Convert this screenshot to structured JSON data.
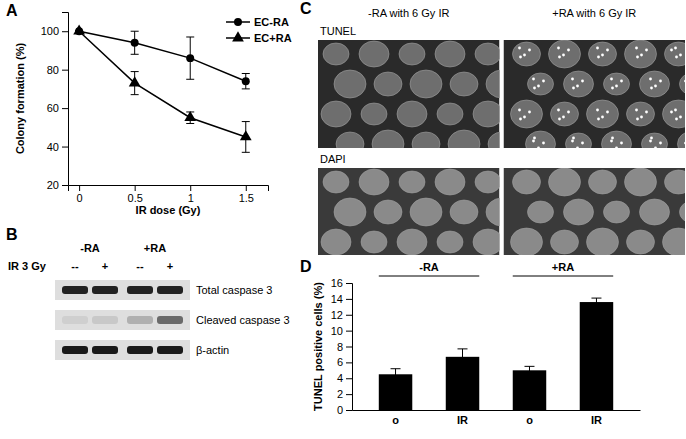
{
  "chart_data": [
    {
      "title": "A",
      "type": "line",
      "x_label": "IR dose (Gy)",
      "y_label": "Colony formation (%)",
      "x": [
        0,
        0.5,
        1,
        1.5
      ],
      "xlim": [
        -0.1,
        1.7
      ],
      "xticks": [
        0,
        0.5,
        1,
        1.5
      ],
      "ylim": [
        20,
        110
      ],
      "yticks": [
        20,
        40,
        60,
        80,
        100
      ],
      "legend": "upper right",
      "series": [
        {
          "name": "EC-RA",
          "color": "#000000",
          "marker": "circle",
          "values": [
            100,
            94,
            86,
            74
          ],
          "errors": [
            0,
            6,
            11,
            4
          ]
        },
        {
          "name": "EC+RA",
          "color": "#000000",
          "marker": "triangle",
          "values": [
            100,
            73,
            55,
            45
          ],
          "errors": [
            0,
            6,
            3,
            8
          ]
        }
      ]
    },
    {
      "title": "B",
      "type": "blot",
      "groups": [
        "-RA",
        "+RA"
      ],
      "row_label": "IR 3 Gy",
      "lanes": [
        "--",
        "+",
        "--",
        "+"
      ],
      "bands": [
        "Total caspase 3",
        "Cleaved caspase 3",
        "β-actin"
      ]
    },
    {
      "title": "C",
      "type": "image",
      "columns": [
        "-RA with 6 Gy IR",
        "+RA with 6 Gy IR"
      ],
      "rows": [
        "TUNEL",
        "DAPI"
      ]
    },
    {
      "title": "D",
      "type": "bar",
      "y_label": "TUNEL positive cells (%)",
      "groups": [
        "-RA",
        "+RA"
      ],
      "categories": [
        "o",
        "IR",
        "o",
        "IR"
      ],
      "values": [
        4.5,
        6.7,
        5.0,
        13.6
      ],
      "errors": [
        0.7,
        1.0,
        0.5,
        0.5
      ],
      "color": "#000000",
      "ylim": [
        0,
        16
      ],
      "yticks": [
        0,
        2,
        4,
        6,
        8,
        10,
        12,
        14,
        16
      ]
    }
  ]
}
